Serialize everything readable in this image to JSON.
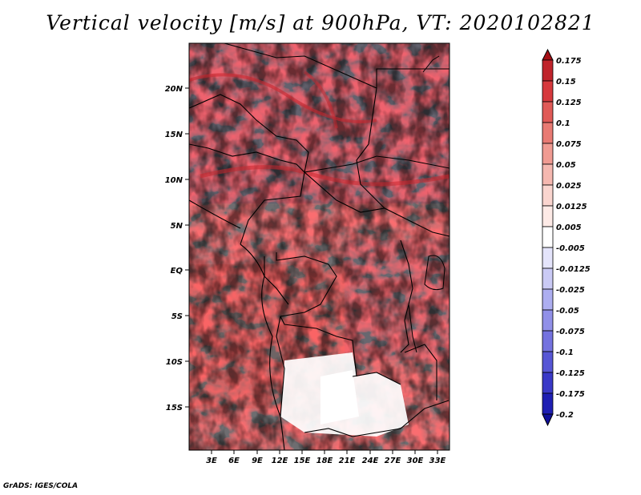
{
  "title": "Vertical velocity [m/s] at 900hPa, VT: 2020102821",
  "credit": "GrADS: IGES/COLA",
  "map": {
    "variable": "Vertical velocity",
    "units": "m/s",
    "level": "900hPa",
    "valid_time": "2020102821",
    "lat_ticks": [
      "20N",
      "15N",
      "10N",
      "5N",
      "EQ",
      "5S",
      "10S",
      "15S"
    ],
    "lon_ticks": [
      "3E",
      "6E",
      "9E",
      "12E",
      "15E",
      "18E",
      "21E",
      "24E",
      "27E",
      "30E",
      "33E"
    ]
  },
  "colorbar": {
    "levels": [
      "0.175",
      "0.15",
      "0.125",
      "0.1",
      "0.075",
      "0.05",
      "0.025",
      "0.0125",
      "0.005",
      "-0.005",
      "-0.0125",
      "-0.025",
      "-0.05",
      "-0.075",
      "-0.1",
      "-0.125",
      "-0.175",
      "-0.2"
    ],
    "colors": [
      "#a50f15",
      "#c0242b",
      "#d6393d",
      "#e05a57",
      "#e87a73",
      "#f09b92",
      "#f5b8b0",
      "#fad5cf",
      "#fdeae6",
      "#ffffff",
      "#e4e4fb",
      "#cacaf5",
      "#adaef0",
      "#9190e8",
      "#7472df",
      "#5756d5",
      "#3a39c7",
      "#1f1fb3",
      "#10109a"
    ]
  }
}
